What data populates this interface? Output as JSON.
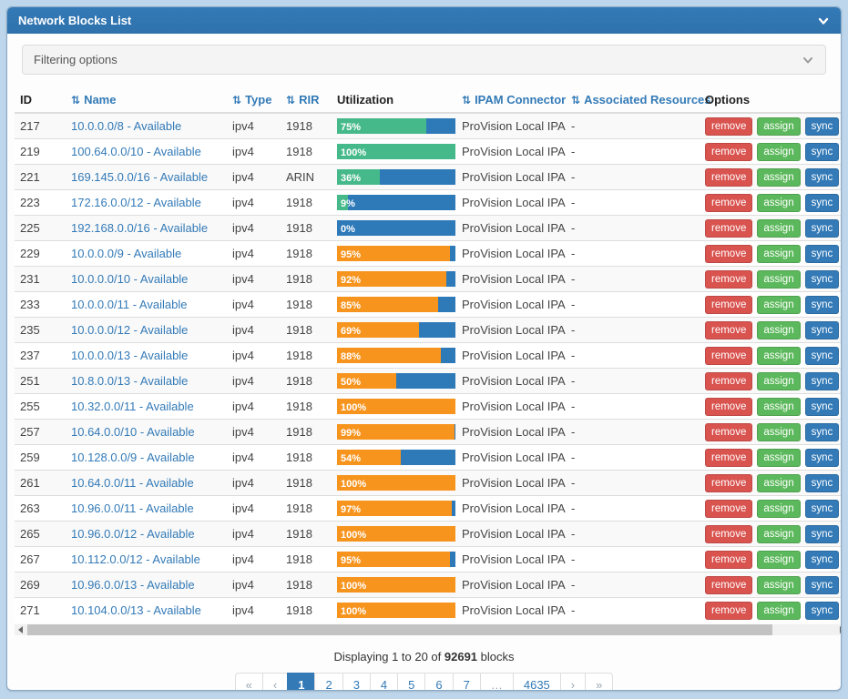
{
  "panel": {
    "title": "Network Blocks List"
  },
  "filter": {
    "label": "Filtering options"
  },
  "table": {
    "sort_glyph": "⇅",
    "headers": [
      {
        "label": "ID",
        "sortable": false
      },
      {
        "label": "Name",
        "sortable": true
      },
      {
        "label": "Type",
        "sortable": true
      },
      {
        "label": "RIR",
        "sortable": true
      },
      {
        "label": "Utilization",
        "sortable": false
      },
      {
        "label": "IPAM Connector",
        "sortable": true
      },
      {
        "label": "Associated Resources",
        "sortable": true
      },
      {
        "label": "Options",
        "sortable": false
      }
    ],
    "option_buttons": [
      "remove",
      "assign",
      "sync"
    ],
    "rows": [
      {
        "id": "217",
        "name": "10.0.0.0/8 - Available",
        "type": "ipv4",
        "rir": "1918",
        "utilization": 75,
        "util_color": "green",
        "connector": "ProVision Local IPAM",
        "resources": "-"
      },
      {
        "id": "219",
        "name": "100.64.0.0/10 - Available",
        "type": "ipv4",
        "rir": "1918",
        "utilization": 100,
        "util_color": "green",
        "connector": "ProVision Local IPAM",
        "resources": "-"
      },
      {
        "id": "221",
        "name": "169.145.0.0/16 - Available",
        "type": "ipv4",
        "rir": "ARIN",
        "utilization": 36,
        "util_color": "green",
        "connector": "ProVision Local IPAM",
        "resources": "-"
      },
      {
        "id": "223",
        "name": "172.16.0.0/12 - Available",
        "type": "ipv4",
        "rir": "1918",
        "utilization": 9,
        "util_color": "green",
        "connector": "ProVision Local IPAM",
        "resources": "-"
      },
      {
        "id": "225",
        "name": "192.168.0.0/16 - Available",
        "type": "ipv4",
        "rir": "1918",
        "utilization": 0,
        "util_color": "green",
        "connector": "ProVision Local IPAM",
        "resources": "-"
      },
      {
        "id": "229",
        "name": "10.0.0.0/9 - Available",
        "type": "ipv4",
        "rir": "1918",
        "utilization": 95,
        "util_color": "orange",
        "connector": "ProVision Local IPAM",
        "resources": "-"
      },
      {
        "id": "231",
        "name": "10.0.0.0/10 - Available",
        "type": "ipv4",
        "rir": "1918",
        "utilization": 92,
        "util_color": "orange",
        "connector": "ProVision Local IPAM",
        "resources": "-"
      },
      {
        "id": "233",
        "name": "10.0.0.0/11 - Available",
        "type": "ipv4",
        "rir": "1918",
        "utilization": 85,
        "util_color": "orange",
        "connector": "ProVision Local IPAM",
        "resources": "-"
      },
      {
        "id": "235",
        "name": "10.0.0.0/12 - Available",
        "type": "ipv4",
        "rir": "1918",
        "utilization": 69,
        "util_color": "orange",
        "connector": "ProVision Local IPAM",
        "resources": "-"
      },
      {
        "id": "237",
        "name": "10.0.0.0/13 - Available",
        "type": "ipv4",
        "rir": "1918",
        "utilization": 88,
        "util_color": "orange",
        "connector": "ProVision Local IPAM",
        "resources": "-"
      },
      {
        "id": "251",
        "name": "10.8.0.0/13 - Available",
        "type": "ipv4",
        "rir": "1918",
        "utilization": 50,
        "util_color": "orange",
        "connector": "ProVision Local IPAM",
        "resources": "-"
      },
      {
        "id": "255",
        "name": "10.32.0.0/11 - Available",
        "type": "ipv4",
        "rir": "1918",
        "utilization": 100,
        "util_color": "orange",
        "connector": "ProVision Local IPAM",
        "resources": "-"
      },
      {
        "id": "257",
        "name": "10.64.0.0/10 - Available",
        "type": "ipv4",
        "rir": "1918",
        "utilization": 99,
        "util_color": "orange",
        "connector": "ProVision Local IPAM",
        "resources": "-"
      },
      {
        "id": "259",
        "name": "10.128.0.0/9 - Available",
        "type": "ipv4",
        "rir": "1918",
        "utilization": 54,
        "util_color": "orange",
        "connector": "ProVision Local IPAM",
        "resources": "-"
      },
      {
        "id": "261",
        "name": "10.64.0.0/11 - Available",
        "type": "ipv4",
        "rir": "1918",
        "utilization": 100,
        "util_color": "orange",
        "connector": "ProVision Local IPAM",
        "resources": "-"
      },
      {
        "id": "263",
        "name": "10.96.0.0/11 - Available",
        "type": "ipv4",
        "rir": "1918",
        "utilization": 97,
        "util_color": "orange",
        "connector": "ProVision Local IPAM",
        "resources": "-"
      },
      {
        "id": "265",
        "name": "10.96.0.0/12 - Available",
        "type": "ipv4",
        "rir": "1918",
        "utilization": 100,
        "util_color": "orange",
        "connector": "ProVision Local IPAM",
        "resources": "-"
      },
      {
        "id": "267",
        "name": "10.112.0.0/12 - Available",
        "type": "ipv4",
        "rir": "1918",
        "utilization": 95,
        "util_color": "orange",
        "connector": "ProVision Local IPAM",
        "resources": "-"
      },
      {
        "id": "269",
        "name": "10.96.0.0/13 - Available",
        "type": "ipv4",
        "rir": "1918",
        "utilization": 100,
        "util_color": "orange",
        "connector": "ProVision Local IPAM",
        "resources": "-"
      },
      {
        "id": "271",
        "name": "10.104.0.0/13 - Available",
        "type": "ipv4",
        "rir": "1918",
        "utilization": 100,
        "util_color": "orange",
        "connector": "ProVision Local IPAM",
        "resources": "-"
      }
    ]
  },
  "footer": {
    "summary_prefix": "Displaying 1 to 20 of ",
    "summary_count": "92691",
    "summary_suffix": " blocks",
    "pagination": [
      {
        "label": "«",
        "name": "first",
        "state": "disabled"
      },
      {
        "label": "‹",
        "name": "prev",
        "state": "disabled"
      },
      {
        "label": "1",
        "name": "page-1",
        "state": "active"
      },
      {
        "label": "2",
        "name": "page-2",
        "state": "link"
      },
      {
        "label": "3",
        "name": "page-3",
        "state": "link"
      },
      {
        "label": "4",
        "name": "page-4",
        "state": "link"
      },
      {
        "label": "5",
        "name": "page-5",
        "state": "link"
      },
      {
        "label": "6",
        "name": "page-6",
        "state": "link"
      },
      {
        "label": "7",
        "name": "page-7",
        "state": "link"
      },
      {
        "label": "…",
        "name": "ellipsis",
        "state": "disabled"
      },
      {
        "label": "4635",
        "name": "page-4635",
        "state": "link"
      },
      {
        "label": "›",
        "name": "next",
        "state": "disabled"
      },
      {
        "label": "»",
        "name": "last",
        "state": "disabled"
      }
    ]
  },
  "colors": {
    "accent": "#337ab7",
    "header_bg": "#337ab7",
    "page_bg": "#bed6eb",
    "util_green": "#46b98a",
    "util_orange": "#f7941e",
    "util_track_blue": "#2e79b8",
    "btn_remove": "#d9534f",
    "btn_assign": "#5cb85c",
    "btn_sync": "#337ab7",
    "btn_extra": "#7fa9d2"
  }
}
